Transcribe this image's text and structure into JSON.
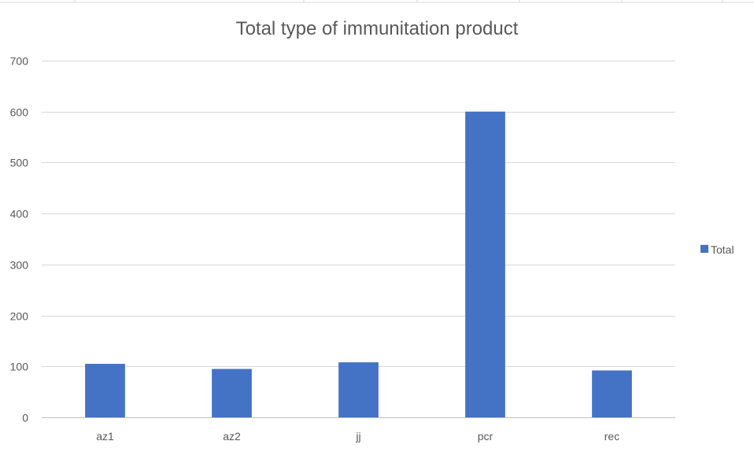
{
  "chart_data": {
    "type": "bar",
    "title": "Total type of immunitation product",
    "categories": [
      "az1",
      "az2",
      "jj",
      "pcr",
      "rec"
    ],
    "series": [
      {
        "name": "Total",
        "values": [
          105,
          95,
          108,
          600,
          92
        ],
        "color": "#4472C4"
      }
    ],
    "xlabel": "",
    "ylabel": "",
    "ylim": [
      0,
      700
    ],
    "yticks": [
      0,
      100,
      200,
      300,
      400,
      500,
      600,
      700
    ],
    "grid": true,
    "legend_position": "right"
  }
}
